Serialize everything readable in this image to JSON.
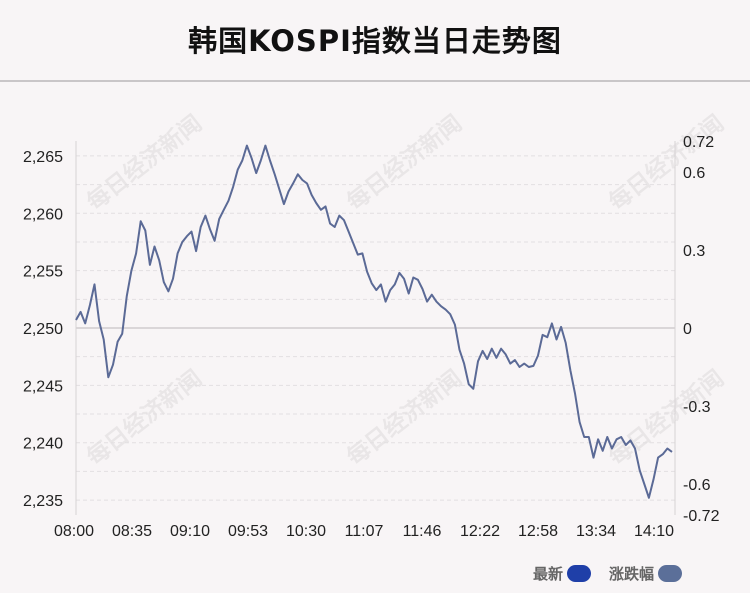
{
  "title": "韩国KOSPI指数当日走势图",
  "watermark": "每日经济新闻",
  "legend": [
    {
      "label": "最新",
      "color": "#1f3fa8"
    },
    {
      "label": "涨跌幅",
      "color": "#5b6f99"
    }
  ],
  "chart_data": {
    "type": "line",
    "title": "韩国KOSPI指数当日走势图",
    "xlabel": "",
    "ylabel": "",
    "x_ticks": [
      "08:00",
      "08:35",
      "09:10",
      "09:53",
      "10:30",
      "11:07",
      "11:46",
      "12:22",
      "12:58",
      "13:34",
      "14:10"
    ],
    "y_left_ticks": [
      2265,
      2260,
      2255,
      2250,
      2245,
      2240,
      2235
    ],
    "y_right_ticks": [
      "0.72",
      "0.6",
      "0.3",
      "0",
      "-0.3",
      "-0.6",
      "-0.72"
    ],
    "ylim_left": [
      2233.7,
      2266.3
    ],
    "ylim_right": [
      -0.72,
      0.72
    ],
    "baseline": 2250,
    "grid": "horizontal-dashed",
    "line_color": "#5b6a96",
    "series": [
      {
        "values": [
          2250.7,
          2251.4,
          2250.4,
          2252.0,
          2253.8,
          2250.6,
          2249.0,
          2245.7,
          2246.8,
          2248.8,
          2249.5,
          2252.8,
          2255.0,
          2256.5,
          2259.3,
          2258.5,
          2255.5,
          2257.1,
          2255.9,
          2254.0,
          2253.2,
          2254.3,
          2256.5,
          2257.5,
          2258.0,
          2258.4,
          2256.7,
          2258.8,
          2259.8,
          2258.6,
          2257.6,
          2259.5,
          2260.3,
          2261.1,
          2262.3,
          2263.8,
          2264.6,
          2265.9,
          2264.8,
          2263.5,
          2264.6,
          2265.9,
          2264.6,
          2263.4,
          2262.1,
          2260.8,
          2261.9,
          2262.6,
          2263.4,
          2262.9,
          2262.6,
          2261.6,
          2260.9,
          2260.3,
          2260.6,
          2259.1,
          2258.8,
          2259.8,
          2259.4,
          2258.4,
          2257.4,
          2256.4,
          2256.5,
          2254.9,
          2253.9,
          2253.3,
          2253.8,
          2252.3,
          2253.3,
          2253.8,
          2254.8,
          2254.3,
          2253.0,
          2254.4,
          2254.2,
          2253.4,
          2252.3,
          2252.9,
          2252.3,
          2251.9,
          2251.6,
          2251.2,
          2250.3,
          2248.1,
          2246.9,
          2245.1,
          2244.7,
          2247.1,
          2248.0,
          2247.3,
          2248.2,
          2247.4,
          2248.2,
          2247.7,
          2246.9,
          2247.2,
          2246.6,
          2246.9,
          2246.6,
          2246.7,
          2247.6,
          2249.4,
          2249.2,
          2250.4,
          2249.0,
          2250.1,
          2248.7,
          2246.3,
          2244.3,
          2241.8,
          2240.5,
          2240.5,
          2238.7,
          2240.3,
          2239.3,
          2240.5,
          2239.5,
          2240.3,
          2240.5,
          2239.8,
          2240.2,
          2239.5,
          2237.6,
          2236.4,
          2235.2,
          2236.8,
          2238.7,
          2239.0,
          2239.5,
          2239.2
        ]
      }
    ]
  }
}
